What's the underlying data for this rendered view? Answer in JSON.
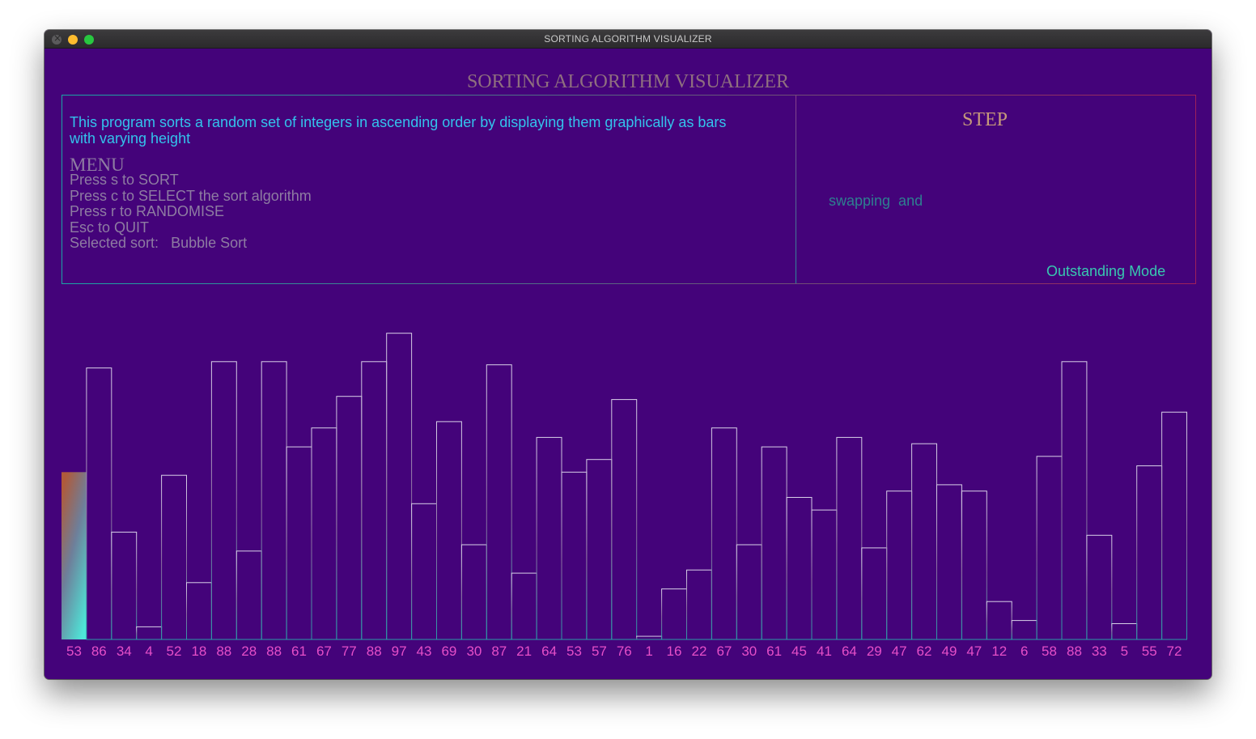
{
  "window": {
    "title": "SORTING ALGORITHM VISUALIZER"
  },
  "app": {
    "title": "SORTING ALGORITHM VISUALIZER",
    "description": "This program sorts a random set of integers in ascending order by displaying them graphically as bars with varying height",
    "menu_title": "MENU",
    "menu_items": [
      "Press s to SORT",
      "Press c to SELECT the sort algorithm",
      "Press r to RANDOMISE",
      "Esc to QUIT"
    ],
    "selected_sort_label": "Selected sort:",
    "selected_sort_value": "Bubble Sort",
    "step_title": "STEP",
    "step_text": "swapping  and",
    "mode": "Outstanding Mode"
  },
  "colors": {
    "background": "#44037a",
    "label": "#e64fc8",
    "highlight_bar_top": "#b05a3a",
    "highlight_bar_bottom": "#4ee6d8"
  },
  "chart_data": {
    "type": "bar",
    "values": [
      53,
      86,
      34,
      4,
      52,
      18,
      88,
      28,
      88,
      61,
      67,
      77,
      88,
      97,
      43,
      69,
      30,
      87,
      21,
      64,
      53,
      57,
      76,
      1,
      16,
      22,
      67,
      30,
      61,
      45,
      41,
      64,
      29,
      47,
      62,
      49,
      47,
      12,
      6,
      58,
      88,
      33,
      5,
      55,
      72
    ],
    "highlighted_index": 0
  }
}
